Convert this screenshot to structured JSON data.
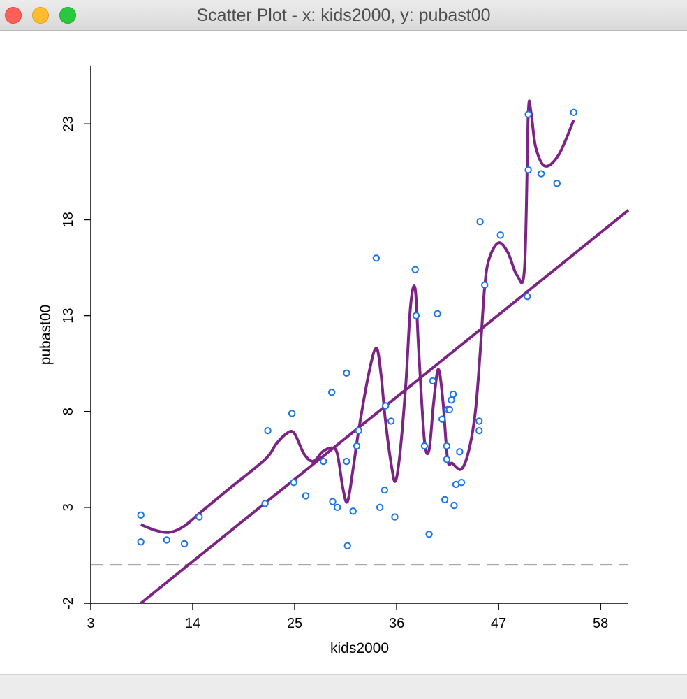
{
  "window": {
    "title": "Scatter Plot - x: kids2000, y: pubast00"
  },
  "colors": {
    "points": "#1a75e8",
    "fit_lines": "#7b2483",
    "axis": "#000000",
    "zero_line": "#999999",
    "titlebar": "#e3e3e3"
  },
  "chart_data": {
    "type": "scatter",
    "title": "",
    "xlabel": "kids2000",
    "ylabel": "pubast00",
    "xlim": [
      3,
      61
    ],
    "ylim": [
      -2,
      26
    ],
    "xticks": [
      "3",
      "14",
      "25",
      "36",
      "47",
      "58"
    ],
    "yticks": [
      "-2",
      "3",
      "8",
      "13",
      "18",
      "23"
    ],
    "grid": false,
    "reference_line": {
      "orientation": "horizontal",
      "y": 0,
      "style": "dashed"
    },
    "series": [
      {
        "type": "scatter",
        "x": [
          8.4,
          8.4,
          11.2,
          13.1,
          14.7,
          21.8,
          22.1,
          24.7,
          24.9,
          26.2,
          28.1,
          29.1,
          29.0,
          29.6,
          30.6,
          30.6,
          30.7,
          31.3,
          31.7,
          31.9,
          33.8,
          34.2,
          34.7,
          34.8,
          35.4,
          35.8,
          38.0,
          38.1,
          39.0,
          39.5,
          39.9,
          40.4,
          40.9,
          41.2,
          41.4,
          41.4,
          41.5,
          41.7,
          41.9,
          42.1,
          42.2,
          42.4,
          42.8,
          43.0,
          44.9,
          44.9,
          45.0,
          45.5,
          47.2,
          50.1,
          50.2,
          50.2,
          51.6,
          53.3,
          55.1
        ],
        "y": [
          2.6,
          1.2,
          1.3,
          1.1,
          2.5,
          3.2,
          7.0,
          7.9,
          4.3,
          3.6,
          5.4,
          3.3,
          9.0,
          3.0,
          10.0,
          5.4,
          1.0,
          2.8,
          6.2,
          7.0,
          16.0,
          3.0,
          3.9,
          8.3,
          7.5,
          2.5,
          15.4,
          13.0,
          6.2,
          1.6,
          9.6,
          13.1,
          7.6,
          3.4,
          6.2,
          5.5,
          8.1,
          8.1,
          8.6,
          8.9,
          3.1,
          4.2,
          5.9,
          4.3,
          7.0,
          7.5,
          17.9,
          14.6,
          17.2,
          14.0,
          20.6,
          23.5,
          20.4,
          19.9,
          23.6
        ]
      },
      {
        "type": "line",
        "name": "linear",
        "x": [
          8.4,
          61
        ],
        "y": [
          -2.0,
          18.5
        ]
      },
      {
        "type": "line",
        "name": "smoother",
        "x": [
          8.4,
          10.0,
          11.5,
          13.0,
          15.0,
          18.0,
          21.8,
          23.0,
          24.0,
          24.9,
          26.0,
          27.0,
          28.0,
          29.0,
          29.6,
          30.2,
          30.7,
          31.3,
          31.9,
          33.0,
          33.8,
          34.3,
          34.8,
          35.5,
          35.9,
          36.4,
          37.0,
          37.5,
          38.0,
          38.4,
          39.0,
          39.5,
          40.0,
          40.5,
          41.0,
          41.5,
          42.0,
          43.0,
          43.8,
          44.5,
          45.0,
          45.5,
          46.0,
          47.0,
          48.0,
          49.0,
          49.8,
          50.2,
          50.5,
          51.0,
          52.0,
          53.5,
          55.1
        ],
        "y": [
          2.1,
          1.8,
          1.7,
          2.0,
          2.8,
          4.0,
          5.5,
          6.3,
          6.8,
          6.9,
          5.8,
          5.4,
          5.9,
          6.1,
          5.8,
          4.0,
          3.3,
          5.0,
          7.0,
          10.0,
          11.3,
          10.0,
          7.5,
          5.0,
          4.4,
          6.0,
          9.5,
          13.5,
          14.4,
          11.0,
          6.5,
          6.0,
          8.5,
          10.2,
          8.5,
          5.5,
          5.3,
          5.0,
          6.0,
          8.0,
          11.0,
          14.5,
          16.0,
          16.8,
          16.3,
          15.1,
          15.5,
          23.5,
          23.6,
          21.8,
          20.8,
          21.4,
          23.2
        ]
      }
    ]
  }
}
